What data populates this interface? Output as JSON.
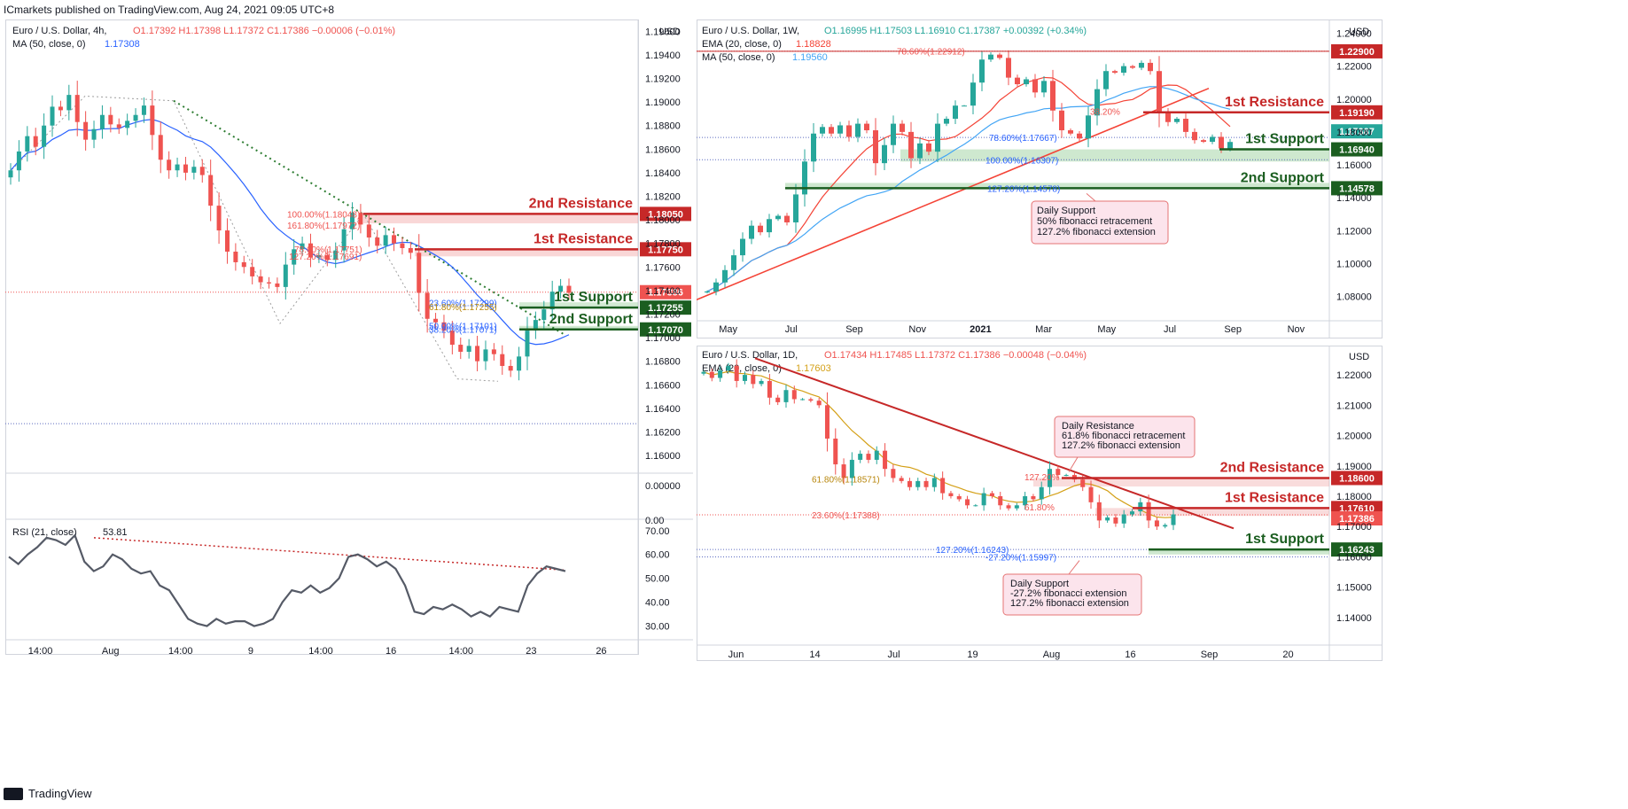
{
  "header": "ICmarkets published on TradingView.com, Aug 24, 2021 09:05 UTC+8",
  "footer": "TradingView",
  "colors": {
    "up": "#26a69a",
    "down": "#ef5350",
    "resistance": "#c62828",
    "support": "#1b5e20",
    "ma_blue": "#2962ff",
    "ema_orange": "#d4a017",
    "ema_red": "#f44336",
    "ma_light_blue": "#42a5f5"
  },
  "chart_data": [
    {
      "panel": "h4",
      "type": "candlestick",
      "symbol_line": "Euro / U.S. Dollar, 4h,",
      "ohlc": "O1.17392  H1.17398  L1.17372  C1.17386  −0.00006 (−0.01%)",
      "indicator_line": "MA (50, close, 0)",
      "indicator_value": "1.17308",
      "currency": "USD",
      "y_ticks": [
        "1.19600",
        "1.19400",
        "1.19200",
        "1.19000",
        "1.18800",
        "1.18600",
        "1.18400",
        "1.18200",
        "1.18000",
        "1.17800",
        "1.17600",
        "1.17400",
        "1.17200",
        "1.17000",
        "1.16800",
        "1.16600",
        "1.16400",
        "1.16200",
        "1.16000"
      ],
      "ylim": [
        1.1588,
        1.1967
      ],
      "x_ticks": [
        "14:00",
        "Aug",
        "14:00",
        "9",
        "14:00",
        "16",
        "14:00",
        "23",
        "26"
      ],
      "closes": [
        1.1842,
        1.1858,
        1.1871,
        1.1862,
        1.188,
        1.1896,
        1.1893,
        1.1906,
        1.1883,
        1.1868,
        1.1877,
        1.1889,
        1.1881,
        1.1878,
        1.1884,
        1.1889,
        1.1897,
        1.1872,
        1.1851,
        1.1842,
        1.1847,
        1.184,
        1.1845,
        1.1838,
        1.1812,
        1.1791,
        1.1773,
        1.1764,
        1.176,
        1.1752,
        1.1747,
        1.1746,
        1.1743,
        1.1762,
        1.1775,
        1.178,
        1.1768,
        1.177,
        1.1766,
        1.1774,
        1.1792,
        1.1806,
        1.1796,
        1.1785,
        1.1778,
        1.1787,
        1.178,
        1.1776,
        1.1772,
        1.1738,
        1.1716,
        1.1713,
        1.1706,
        1.1694,
        1.1688,
        1.1693,
        1.168,
        1.169,
        1.1686,
        1.1676,
        1.1672,
        1.1684,
        1.1706,
        1.1715,
        1.1724,
        1.1739,
        1.1744,
        1.1738
      ],
      "levels": [
        {
          "label": "2nd Resistance",
          "value": "1.18050",
          "kind": "resistance"
        },
        {
          "label": "1st Resistance",
          "value": "1.17750",
          "kind": "resistance"
        },
        {
          "label": "1st Support",
          "value": "1.17255",
          "kind": "support"
        },
        {
          "label": "2nd Support",
          "value": "1.17070",
          "kind": "support"
        }
      ],
      "current_price": "1.17386",
      "zero_tag": "0.00000",
      "fib_labels": [
        "100.00%(1.18048)",
        "161.80%(1.17972)",
        "78.60%(1.17751)",
        "127.20%(1.17691)",
        "23.60%(1.17299)",
        "61.80%(1.17255)",
        "50.00%(1.17101)",
        "38.20%(1.17071)"
      ],
      "rsi": {
        "label": "RSI (21, close)",
        "value": "53.81",
        "y_ticks": [
          "70.00",
          "60.00",
          "50.00",
          "40.00",
          "30.00"
        ],
        "top_tag": "0.00",
        "ylim": [
          25,
          74
        ],
        "values": [
          59,
          56,
          60,
          63,
          67,
          66,
          64,
          68,
          57,
          53,
          55,
          60,
          58,
          54,
          52,
          53,
          47,
          45,
          39,
          33,
          31,
          30,
          33,
          31,
          32,
          32,
          30,
          31,
          33,
          40,
          45,
          44,
          47,
          44,
          46,
          50,
          59,
          60,
          58,
          55,
          57,
          54,
          47,
          36,
          35,
          38,
          37,
          39,
          37,
          34,
          36,
          34,
          38,
          37,
          36,
          47,
          52,
          55,
          54,
          53
        ]
      }
    },
    {
      "panel": "1w",
      "type": "candlestick",
      "symbol_line": "Euro / U.S. Dollar, 1W,",
      "ohlc": "O1.16995  H1.17503  L1.16910  C1.17387  +0.00392 (+0.34%)",
      "indicator_lines": [
        {
          "label": "EMA (20, close, 0)",
          "value": "1.18828"
        },
        {
          "label": "MA (50, close, 0)",
          "value": "1.19560"
        }
      ],
      "currency": "USD",
      "y_ticks": [
        "1.24000",
        "1.22000",
        "1.20000",
        "1.18000",
        "1.16000",
        "1.14000",
        "1.12000",
        "1.10000",
        "1.08000"
      ],
      "ylim": [
        1.0695,
        1.2462
      ],
      "x_ticks": [
        "May",
        "Jul",
        "Sep",
        "Nov",
        "2021",
        "Mar",
        "May",
        "Jul",
        "Sep",
        "Nov"
      ],
      "closes": [
        1.083,
        1.0885,
        1.096,
        1.105,
        1.115,
        1.123,
        1.119,
        1.127,
        1.129,
        1.125,
        1.142,
        1.162,
        1.179,
        1.183,
        1.179,
        1.184,
        1.177,
        1.185,
        1.181,
        1.161,
        1.172,
        1.185,
        1.18,
        1.164,
        1.173,
        1.168,
        1.185,
        1.188,
        1.196,
        1.196,
        1.21,
        1.224,
        1.227,
        1.225,
        1.213,
        1.209,
        1.212,
        1.204,
        1.211,
        1.193,
        1.181,
        1.179,
        1.176,
        1.19,
        1.206,
        1.217,
        1.216,
        1.22,
        1.219,
        1.222,
        1.217,
        1.192,
        1.186,
        1.188,
        1.18,
        1.175,
        1.174,
        1.177,
        1.17,
        1.1739
      ],
      "levels": [
        {
          "label": "",
          "value": "1.22900",
          "kind": "resistance"
        },
        {
          "label": "1st Resistance",
          "value": "1.19190",
          "kind": "resistance"
        },
        {
          "label": "1st Support",
          "value": "1.16940",
          "kind": "support"
        },
        {
          "label": "2nd Support",
          "value": "1.14578",
          "kind": "support"
        }
      ],
      "current_price": "1.17387",
      "fib_labels": [
        "78.60%(1.22912)",
        "38.20%",
        "78.60%(1.17667)",
        "100.00%(1.16307)",
        "127.20%(1.14578)"
      ],
      "annotation": [
        "Daily Support",
        "50% fibonacci retracement",
        "127.2% fibonacci extension"
      ]
    },
    {
      "panel": "1d",
      "type": "candlestick",
      "symbol_line": "Euro / U.S. Dollar, 1D,",
      "ohlc": "O1.17434  H1.17485  L1.17372  C1.17386  −0.00048 (−0.04%)",
      "indicator_lines": [
        {
          "label": "EMA (20, close, 0)",
          "value": "1.17603"
        }
      ],
      "currency": "USD",
      "y_ticks": [
        "1.22000",
        "1.21000",
        "1.20000",
        "1.19000",
        "1.18000",
        "1.17000",
        "1.16000",
        "1.15000",
        "1.14000"
      ],
      "ylim": [
        1.1315,
        1.2285
      ],
      "x_ticks": [
        "Jun",
        "14",
        "Jul",
        "19",
        "Aug",
        "16",
        "Sep",
        "20"
      ],
      "closes": [
        1.221,
        1.219,
        1.2215,
        1.223,
        1.218,
        1.22,
        1.217,
        1.218,
        1.2125,
        1.211,
        1.215,
        1.212,
        1.212,
        1.2115,
        1.21,
        1.199,
        1.1905,
        1.186,
        1.192,
        1.194,
        1.192,
        1.195,
        1.189,
        1.186,
        1.185,
        1.183,
        1.185,
        1.183,
        1.186,
        1.181,
        1.18,
        1.179,
        1.177,
        1.177,
        1.181,
        1.18,
        1.177,
        1.176,
        1.177,
        1.18,
        1.179,
        1.183,
        1.189,
        1.187,
        1.187,
        1.1855,
        1.183,
        1.178,
        1.172,
        1.173,
        1.171,
        1.174,
        1.175,
        1.178,
        1.172,
        1.17,
        1.1705,
        1.174
      ],
      "levels": [
        {
          "label": "2nd Resistance",
          "value": "1.18600",
          "kind": "resistance"
        },
        {
          "label": "1st Resistance",
          "value": "1.17610",
          "kind": "resistance"
        },
        {
          "label": "1st Support",
          "value": "1.16243",
          "kind": "support"
        }
      ],
      "current_price": "1.17386",
      "fib_labels": [
        "61.80%(1.18571)",
        "127.20%",
        "61.80%",
        "23.60%(1.17388)",
        "127.20%(1.16243)",
        "-27.20%(1.15997)"
      ],
      "annotations": [
        [
          "Daily Resistance",
          "61.8% fibonacci retracement",
          "127.2% fibonacci extension"
        ],
        [
          "Daily Support",
          "-27.2% fibonacci extension",
          "127.2% fibonacci extension"
        ]
      ]
    }
  ]
}
